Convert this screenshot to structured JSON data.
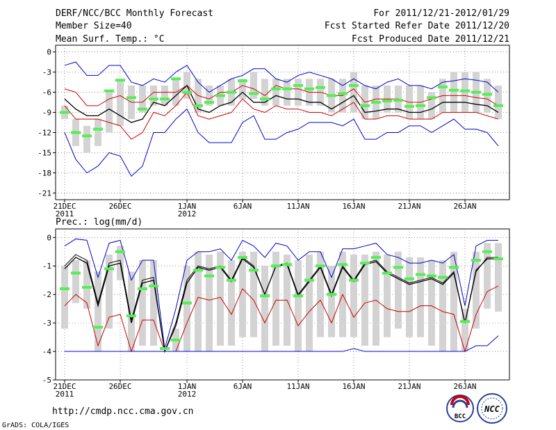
{
  "header": {
    "title": "DERF/NCC/BCC Monthly Forecast",
    "member_size": "Member Size=40",
    "variable": "Mean Surf. Temp.: °C",
    "period": "For 2011/12/21-2012/01/29",
    "started": "Fcst Started Refer Date 2011/12/20",
    "produced": "Fcst Produced Date 2011/12/21"
  },
  "footer": {
    "url": "http://cmdp.ncc.cma.gov.cn",
    "credit": "GrADS: COLA/IGES",
    "logo_bcc": "BCC",
    "logo_ncc": "NCC"
  },
  "colors": {
    "box": "#d3d3d3",
    "median": "#55ee55",
    "mean": "#000000",
    "pct": "#cc0000",
    "extreme": "#0000cc",
    "grid": "#444444"
  },
  "chart_data": [
    {
      "name": "temperature",
      "type": "box-line",
      "title": "Mean Surf. Temp.: °C",
      "ylim": [
        -22,
        1
      ],
      "yticks": [
        0,
        -3,
        -6,
        -9,
        -12,
        -15,
        -18,
        -21
      ],
      "xticks": [
        {
          "day": 0,
          "label": "21DEC",
          "sub": "2011"
        },
        {
          "day": 5,
          "label": "26DEC"
        },
        {
          "day": 11,
          "label": "1JAN",
          "sub": "2012"
        },
        {
          "day": 16,
          "label": "6JAN"
        },
        {
          "day": 21,
          "label": "11JAN"
        },
        {
          "day": 26,
          "label": "16JAN"
        },
        {
          "day": 31,
          "label": "21JAN"
        },
        {
          "day": 36,
          "label": "26JAN"
        }
      ],
      "x": [
        0,
        1,
        2,
        3,
        4,
        5,
        6,
        7,
        8,
        9,
        10,
        11,
        12,
        13,
        14,
        15,
        16,
        17,
        18,
        19,
        20,
        21,
        22,
        23,
        24,
        25,
        26,
        27,
        28,
        29,
        30,
        31,
        32,
        33,
        34,
        35,
        36,
        37,
        38,
        39
      ],
      "box_hi": [
        -8,
        -10,
        -11,
        -10,
        -6,
        -4,
        -5,
        -5,
        -5,
        -5,
        -4,
        -3,
        -4,
        -5,
        -5,
        -4,
        -4,
        -3,
        -4,
        -4,
        -4,
        -4,
        -4,
        -4,
        -4,
        -4,
        -3,
        -5,
        -5,
        -5,
        -5,
        -5,
        -5,
        -6,
        -4,
        -3,
        -3,
        -3,
        -4,
        -5
      ],
      "box_lo": [
        -10,
        -14,
        -15,
        -14,
        -12,
        -11,
        -10,
        -9,
        -8,
        -8,
        -8,
        -7,
        -9,
        -8,
        -8,
        -8,
        -7,
        -7,
        -8,
        -8,
        -8,
        -8,
        -8,
        -8,
        -9,
        -9,
        -9,
        -10,
        -10,
        -9,
        -9,
        -10,
        -10,
        -10,
        -9,
        -9,
        -9,
        -9,
        -9,
        -10
      ],
      "median": [
        -9,
        -12,
        -12.5,
        -11.5,
        -5.8,
        -4.2,
        -6.8,
        -8.5,
        -7,
        -7,
        -4,
        -6,
        -8,
        -7.5,
        -6.5,
        -6,
        -4.3,
        -6.2,
        -7,
        -5.5,
        -5.5,
        -5,
        -5.5,
        -5.3,
        -6.5,
        -6.2,
        -5,
        -8,
        -7.5,
        -7.3,
        -7.2,
        -8.1,
        -8,
        -6.8,
        -5.2,
        -5.7,
        -5.8,
        -6,
        -6.3,
        -8
      ],
      "series": [
        {
          "name": "max",
          "color": "#0000cc",
          "values": [
            -2,
            -1.5,
            -3.5,
            -3.5,
            -2,
            -2,
            -4.5,
            -5,
            -4,
            -4.5,
            -3,
            -2,
            -4.5,
            -6,
            -5,
            -4,
            -3.5,
            -2.5,
            -2.5,
            -4,
            -4.5,
            -3.5,
            -3,
            -3.5,
            -4,
            -5,
            -4,
            -5,
            -5.5,
            -4.5,
            -4,
            -5,
            -5,
            -5.5,
            -4.5,
            -4.3,
            -4,
            -4.2,
            -4.5,
            -6
          ]
        },
        {
          "name": "upper",
          "color": "#cc0000",
          "values": [
            -5.5,
            -6,
            -8,
            -8,
            -7,
            -6.5,
            -7.5,
            -7.5,
            -6,
            -6,
            -6,
            -5,
            -6.5,
            -7,
            -6,
            -6,
            -5,
            -5.5,
            -6.5,
            -5,
            -5.5,
            -5.5,
            -6,
            -6,
            -6.5,
            -6.5,
            -5.5,
            -7.5,
            -7,
            -7,
            -7,
            -7.5,
            -7.5,
            -7,
            -6.5,
            -6.5,
            -6.5,
            -6.8,
            -7,
            -8
          ]
        },
        {
          "name": "mean",
          "color": "#000000",
          "values": [
            -7,
            -8.5,
            -9.5,
            -9.5,
            -8.5,
            -9.5,
            -10.5,
            -10,
            -7.5,
            -8,
            -6.5,
            -5,
            -8.5,
            -9,
            -8,
            -7.5,
            -6,
            -7.5,
            -7.5,
            -6.5,
            -7,
            -7,
            -7.5,
            -7.5,
            -8.5,
            -7.5,
            -6.5,
            -9,
            -8.8,
            -8.5,
            -8.5,
            -9,
            -9,
            -8.5,
            -7.5,
            -7.5,
            -7.5,
            -7.8,
            -8,
            -9
          ]
        },
        {
          "name": "lower",
          "color": "#cc0000",
          "values": [
            -8,
            -10,
            -10,
            -10,
            -10.5,
            -11,
            -13,
            -12,
            -9,
            -9.5,
            -8,
            -6,
            -9.5,
            -10,
            -9.5,
            -9,
            -7,
            -8.5,
            -9,
            -8,
            -8.5,
            -8.5,
            -9,
            -9,
            -9.5,
            -8.5,
            -7.5,
            -10,
            -10,
            -9.5,
            -9.5,
            -10,
            -10,
            -10,
            -9,
            -9,
            -9,
            -9,
            -9.5,
            -10
          ]
        },
        {
          "name": "min",
          "color": "#0000cc",
          "values": [
            -12,
            -16,
            -18,
            -17,
            -15,
            -15.5,
            -18.5,
            -17,
            -12,
            -12,
            -10,
            -8.5,
            -12,
            -13.5,
            -13.5,
            -13.5,
            -10.5,
            -9.5,
            -13,
            -13,
            -12,
            -11.5,
            -10.5,
            -10.5,
            -10.5,
            -11,
            -10,
            -13,
            -13,
            -12,
            -12,
            -11,
            -11,
            -12,
            -11,
            -10,
            -11.5,
            -11.5,
            -12,
            -14
          ]
        }
      ]
    },
    {
      "name": "precipitation",
      "type": "box-line",
      "title": "Prec.: log(mm/d)",
      "ylim": [
        -5,
        0.3
      ],
      "yticks": [
        0,
        -1,
        -2,
        -3,
        -4,
        -5
      ],
      "xticks": [
        {
          "day": 0,
          "label": "21DEC",
          "sub": "2011"
        },
        {
          "day": 5,
          "label": "26DEC"
        },
        {
          "day": 11,
          "label": "1JAN",
          "sub": "2012"
        },
        {
          "day": 16,
          "label": "6JAN"
        },
        {
          "day": 21,
          "label": "11JAN"
        },
        {
          "day": 26,
          "label": "16JAN"
        },
        {
          "day": 31,
          "label": "21JAN"
        },
        {
          "day": 36,
          "label": "26JAN"
        }
      ],
      "x": [
        0,
        1,
        2,
        3,
        4,
        5,
        6,
        7,
        8,
        9,
        10,
        11,
        12,
        13,
        14,
        15,
        16,
        17,
        18,
        19,
        20,
        21,
        22,
        23,
        24,
        25,
        26,
        27,
        28,
        29,
        30,
        31,
        32,
        33,
        34,
        35,
        36,
        37,
        38,
        39
      ],
      "box_hi": [
        -1,
        -0.8,
        -0.8,
        -1.2,
        -0.6,
        -0.3,
        -1.2,
        -0.8,
        -0.8,
        -4,
        -3.2,
        -1,
        -0.5,
        -0.6,
        -0.5,
        -0.8,
        -0.5,
        -0.5,
        -1,
        -0.5,
        -0.6,
        -0.8,
        -0.6,
        -0.5,
        -1,
        -0.5,
        -0.6,
        -0.6,
        -0.5,
        -0.6,
        -0.5,
        -0.7,
        -0.7,
        -0.8,
        -0.8,
        -0.5,
        -2.5,
        -0.5,
        -0.2,
        -0.2
      ],
      "box_lo": [
        -3.2,
        -2.3,
        -2.5,
        -4,
        -3.2,
        -1.5,
        -4,
        -3.8,
        -3.8,
        -4,
        -4,
        -4,
        -4,
        -4,
        -3.8,
        -3.8,
        -3.5,
        -3.5,
        -4,
        -3.8,
        -3.8,
        -4,
        -4,
        -3.5,
        -3.5,
        -3.5,
        -3.5,
        -3.8,
        -3.8,
        -3.5,
        -3.2,
        -3.5,
        -3.5,
        -3.8,
        -4,
        -4,
        -4,
        -3.2,
        -2.5,
        -2.6
      ],
      "median": [
        -1.8,
        -1.25,
        -1.75,
        -3.15,
        -1.1,
        -0.5,
        -2.75,
        -1.8,
        -1.7,
        -3.9,
        -3.6,
        -2.3,
        -1.15,
        -1.35,
        -1.05,
        -1.5,
        -0.7,
        -1.15,
        -2.05,
        -1,
        -0.95,
        -2.05,
        -1.5,
        -1,
        -2,
        -0.95,
        -1.5,
        -0.9,
        -0.7,
        -1.25,
        -1.05,
        -1.45,
        -1.3,
        -1.35,
        -1.4,
        -1.05,
        -2.95,
        -0.8,
        -0.5,
        -0.75
      ],
      "series": [
        {
          "name": "max",
          "color": "#0000cc",
          "values": [
            -0.3,
            -0.05,
            -0.1,
            -1.4,
            -0.2,
            -0.1,
            -1.5,
            -0.8,
            -0.8,
            -3.9,
            -2.5,
            -0.8,
            -0.5,
            -0.5,
            -0.4,
            -0.8,
            -0.1,
            -0.3,
            -0.7,
            -0.2,
            -0.3,
            -0.8,
            -0.5,
            -0.5,
            -1.4,
            -0.4,
            -0.4,
            -0.3,
            -0.2,
            -0.6,
            -0.7,
            -0.9,
            -0.9,
            -0.8,
            -0.9,
            -0.6,
            -2.4,
            -0.3,
            -0.1,
            -0.1
          ]
        },
        {
          "name": "upper",
          "color": "#000000",
          "values": [
            -1,
            -0.6,
            -0.8,
            -2.3,
            -0.9,
            -0.8,
            -2.9,
            -1.5,
            -1.4,
            -4,
            -3,
            -1.5,
            -1,
            -1.1,
            -1,
            -1.5,
            -0.7,
            -1,
            -2,
            -1,
            -0.9,
            -2,
            -1.5,
            -1,
            -2,
            -1,
            -1.5,
            -0.9,
            -0.8,
            -1.2,
            -1.4,
            -1.6,
            -1.5,
            -1.4,
            -1.6,
            -1.2,
            -3,
            -1.2,
            -0.7,
            -0.7
          ]
        },
        {
          "name": "mean",
          "color": "#000000",
          "values": [
            -1.1,
            -0.7,
            -0.9,
            -2.4,
            -1,
            -0.9,
            -3,
            -1.6,
            -1.5,
            -4,
            -3.1,
            -1.6,
            -1.05,
            -1.15,
            -1.05,
            -1.55,
            -0.75,
            -1.05,
            -2,
            -1,
            -0.95,
            -2.05,
            -1.55,
            -1.05,
            -2.05,
            -1.05,
            -1.55,
            -0.95,
            -0.85,
            -1.25,
            -1.45,
            -1.65,
            -1.55,
            -1.45,
            -1.65,
            -1.25,
            -3,
            -1.15,
            -0.75,
            -0.75
          ]
        },
        {
          "name": "lower",
          "color": "#cc0000",
          "values": [
            -2.4,
            -2,
            -2.3,
            -3.8,
            -2.8,
            -2.7,
            -4,
            -2.9,
            -2.9,
            -4,
            -4,
            -3,
            -2.1,
            -2.2,
            -2.1,
            -2.7,
            -1.8,
            -2.2,
            -3,
            -2.2,
            -2.2,
            -3.1,
            -2.6,
            -2.2,
            -3,
            -2,
            -2.8,
            -2.3,
            -2.2,
            -2.5,
            -2.6,
            -2.6,
            -2.4,
            -2.4,
            -2.6,
            -2.7,
            -4,
            -2.7,
            -1.9,
            -1.7
          ]
        },
        {
          "name": "min",
          "color": "#0000cc",
          "values": [
            -4,
            -4,
            -4,
            -4,
            -4,
            -4,
            -4,
            -4,
            -4,
            -4,
            -4,
            -4,
            -4,
            -4,
            -4,
            -4,
            -4,
            -4,
            -4,
            -4,
            -4,
            -4,
            -4,
            -4,
            -4,
            -4,
            -3.9,
            -4,
            -4,
            -4,
            -4,
            -4,
            -4,
            -4,
            -4,
            -4,
            -4,
            -3.8,
            -3.8,
            -3.45
          ]
        }
      ]
    }
  ]
}
